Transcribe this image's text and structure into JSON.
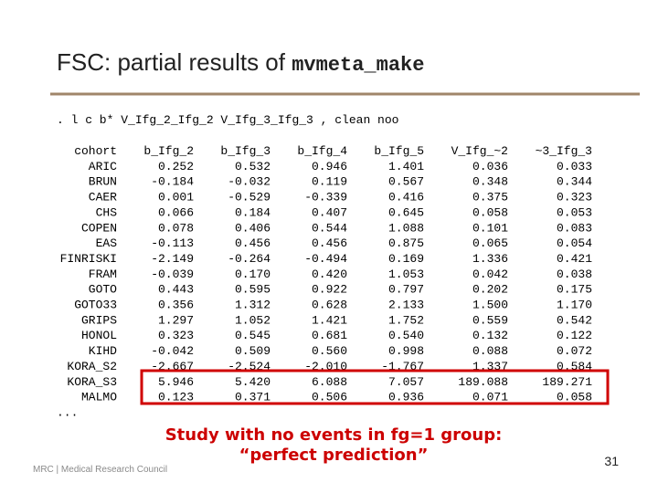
{
  "header": {
    "title": "FSC: partial results of ",
    "title_code": "mvmeta_make"
  },
  "command": ". l c b* V_Ifg_2_Ifg_2 V_Ifg_3_Ifg_3 , clean noo",
  "table": {
    "columns": [
      "cohort",
      "b_Ifg_2",
      "b_Ifg_3",
      "b_Ifg_4",
      "b_Ifg_5",
      "V_Ifg_~2",
      "~3_Ifg_3"
    ],
    "rows": [
      [
        "ARIC",
        "0.252",
        "0.532",
        "0.946",
        "1.401",
        "0.036",
        "0.033"
      ],
      [
        "BRUN",
        "-0.184",
        "-0.032",
        "0.119",
        "0.567",
        "0.348",
        "0.344"
      ],
      [
        "CAER",
        "0.001",
        "-0.529",
        "-0.339",
        "0.416",
        "0.375",
        "0.323"
      ],
      [
        "CHS",
        "0.066",
        "0.184",
        "0.407",
        "0.645",
        "0.058",
        "0.053"
      ],
      [
        "COPEN",
        "0.078",
        "0.406",
        "0.544",
        "1.088",
        "0.101",
        "0.083"
      ],
      [
        "EAS",
        "-0.113",
        "0.456",
        "0.456",
        "0.875",
        "0.065",
        "0.054"
      ],
      [
        "FINRISKI",
        "-2.149",
        "-0.264",
        "-0.494",
        "0.169",
        "1.336",
        "0.421"
      ],
      [
        "FRAM",
        "-0.039",
        "0.170",
        "0.420",
        "1.053",
        "0.042",
        "0.038"
      ],
      [
        "GOTO",
        "0.443",
        "0.595",
        "0.922",
        "0.797",
        "0.202",
        "0.175"
      ],
      [
        "GOTO33",
        "0.356",
        "1.312",
        "0.628",
        "2.133",
        "1.500",
        "1.170"
      ],
      [
        "GRIPS",
        "1.297",
        "1.052",
        "1.421",
        "1.752",
        "0.559",
        "0.542"
      ],
      [
        "HONOL",
        "0.323",
        "0.545",
        "0.681",
        "0.540",
        "0.132",
        "0.122"
      ],
      [
        "KIHD",
        "-0.042",
        "0.509",
        "0.560",
        "0.998",
        "0.088",
        "0.072"
      ],
      [
        "KORA_S2",
        "-2.667",
        "-2.524",
        "-2.010",
        "-1.767",
        "1.337",
        "0.584"
      ],
      [
        "KORA_S3",
        "5.946",
        "5.420",
        "6.088",
        "7.057",
        "189.088",
        "189.271"
      ],
      [
        "MALMO",
        "0.123",
        "0.371",
        "0.506",
        "0.936",
        "0.071",
        "0.058"
      ]
    ],
    "ellipsis": "..."
  },
  "annotation": [
    "Study with no events in fg=1 group:",
    "“perfect prediction”"
  ],
  "footer": {
    "logo": "MRC | Medical Research Council",
    "page": "31"
  }
}
